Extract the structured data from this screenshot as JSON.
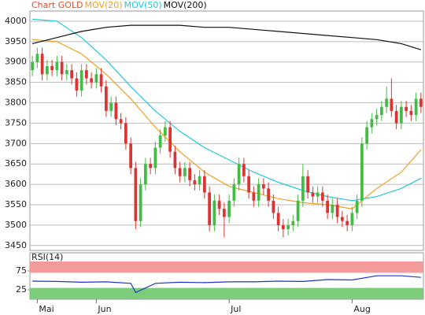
{
  "chart_data": [
    {
      "type": "candlestick",
      "title": "Chart GOLD",
      "title_color": "#e0502a",
      "up_color": "#44bb44",
      "down_color": "#dd3333",
      "open": [
        3880,
        3900,
        3920,
        3870,
        3890,
        3880,
        3900,
        3870,
        3880,
        3860,
        3830,
        3880,
        3860,
        3850,
        3870,
        3840,
        3780,
        3800,
        3760,
        3750,
        3700,
        3640,
        3510,
        3600,
        3650,
        3640,
        3690,
        3720,
        3740,
        3680,
        3640,
        3620,
        3640,
        3610,
        3600,
        3620,
        3580,
        3500,
        3560,
        3540,
        3520,
        3560,
        3600,
        3650,
        3620,
        3580,
        3560,
        3600,
        3590,
        3560,
        3530,
        3500,
        3490,
        3500,
        3510,
        3560,
        3620,
        3580,
        3570,
        3580,
        3560,
        3530,
        3550,
        3520,
        3510,
        3500,
        3530,
        3560,
        3700,
        3740,
        3760,
        3770,
        3790,
        3810,
        3780,
        3750,
        3790,
        3780,
        3770,
        3810
      ],
      "high": [
        3915,
        3935,
        3935,
        3905,
        3905,
        3915,
        3915,
        3895,
        3895,
        3875,
        3895,
        3895,
        3875,
        3885,
        3885,
        3855,
        3815,
        3815,
        3775,
        3765,
        3715,
        3655,
        3615,
        3665,
        3665,
        3705,
        3735,
        3755,
        3755,
        3695,
        3655,
        3655,
        3655,
        3625,
        3635,
        3635,
        3595,
        3575,
        3575,
        3555,
        3575,
        3615,
        3665,
        3665,
        3635,
        3595,
        3615,
        3615,
        3605,
        3575,
        3545,
        3515,
        3515,
        3525,
        3575,
        3650,
        3635,
        3595,
        3595,
        3595,
        3575,
        3565,
        3565,
        3535,
        3525,
        3545,
        3575,
        3715,
        3755,
        3775,
        3785,
        3805,
        3840,
        3860,
        3795,
        3805,
        3805,
        3795,
        3825,
        3825
      ],
      "low": [
        3865,
        3885,
        3855,
        3855,
        3865,
        3865,
        3855,
        3855,
        3845,
        3815,
        3815,
        3845,
        3835,
        3835,
        3825,
        3765,
        3765,
        3745,
        3735,
        3685,
        3625,
        3490,
        3495,
        3585,
        3625,
        3625,
        3675,
        3705,
        3665,
        3625,
        3605,
        3605,
        3595,
        3585,
        3585,
        3565,
        3485,
        3485,
        3525,
        3470,
        3505,
        3545,
        3585,
        3605,
        3565,
        3545,
        3545,
        3575,
        3545,
        3515,
        3485,
        3470,
        3475,
        3485,
        3495,
        3545,
        3565,
        3555,
        3555,
        3545,
        3515,
        3515,
        3505,
        3495,
        3485,
        3485,
        3515,
        3545,
        3685,
        3725,
        3745,
        3755,
        3775,
        3765,
        3735,
        3735,
        3765,
        3755,
        3755,
        3775
      ],
      "close": [
        3900,
        3920,
        3870,
        3890,
        3880,
        3900,
        3870,
        3880,
        3860,
        3830,
        3880,
        3860,
        3850,
        3870,
        3840,
        3780,
        3800,
        3760,
        3750,
        3700,
        3640,
        3510,
        3600,
        3650,
        3640,
        3690,
        3720,
        3740,
        3680,
        3640,
        3620,
        3640,
        3610,
        3600,
        3620,
        3580,
        3500,
        3560,
        3540,
        3520,
        3560,
        3600,
        3650,
        3620,
        3580,
        3560,
        3600,
        3590,
        3560,
        3530,
        3500,
        3490,
        3500,
        3510,
        3560,
        3620,
        3580,
        3570,
        3580,
        3560,
        3530,
        3550,
        3520,
        3510,
        3500,
        3530,
        3560,
        3700,
        3740,
        3760,
        3770,
        3790,
        3810,
        3780,
        3750,
        3790,
        3780,
        3770,
        3810,
        3790
      ],
      "series": [
        {
          "name": "MOV(20)",
          "color": "#f0a020",
          "x": [
            0,
            5,
            10,
            15,
            20,
            25,
            30,
            35,
            40,
            45,
            50,
            55,
            60,
            65,
            70,
            75,
            79
          ],
          "values": [
            3955,
            3950,
            3920,
            3870,
            3810,
            3740,
            3680,
            3630,
            3595,
            3580,
            3565,
            3555,
            3550,
            3540,
            3590,
            3630,
            3685
          ]
        },
        {
          "name": "MOV(50)",
          "color": "#22c8e0",
          "x": [
            0,
            5,
            10,
            15,
            20,
            25,
            30,
            35,
            40,
            45,
            50,
            55,
            60,
            65,
            70,
            75,
            79
          ],
          "values": [
            4005,
            4000,
            3960,
            3905,
            3840,
            3780,
            3730,
            3690,
            3660,
            3630,
            3605,
            3585,
            3570,
            3560,
            3570,
            3590,
            3615
          ]
        },
        {
          "name": "MOV(200)",
          "color": "#111111",
          "x": [
            0,
            5,
            10,
            15,
            20,
            25,
            30,
            35,
            40,
            45,
            50,
            55,
            60,
            65,
            70,
            75,
            79
          ],
          "values": [
            3945,
            3960,
            3975,
            3985,
            3990,
            3990,
            3990,
            3985,
            3985,
            3980,
            3975,
            3970,
            3965,
            3960,
            3955,
            3945,
            3930
          ]
        }
      ],
      "xlim": [
        -0.5,
        79.5
      ],
      "ylim": [
        3438,
        4025
      ],
      "yticks": [
        3450,
        3500,
        3550,
        3600,
        3650,
        3700,
        3750,
        3800,
        3850,
        3900,
        3950,
        4000
      ],
      "grid": true
    },
    {
      "type": "line",
      "title": "RSI(14)",
      "series": [
        {
          "color": "#2233cc",
          "x": [
            0,
            5,
            10,
            15,
            20,
            21,
            25,
            30,
            35,
            40,
            45,
            50,
            55,
            60,
            65,
            70,
            75,
            79
          ],
          "values": [
            48,
            47,
            45,
            46,
            42,
            18,
            42,
            45,
            44,
            46,
            46,
            48,
            47,
            52,
            51,
            62,
            62,
            58
          ]
        }
      ],
      "bands": [
        {
          "from": 70,
          "to": 100,
          "color": "#f39a9a"
        },
        {
          "from": 0,
          "to": 30,
          "color": "#7ccc7c"
        }
      ],
      "xlim": [
        -0.5,
        79.5
      ],
      "ylim": [
        0,
        100
      ],
      "yticks": [
        25,
        75
      ],
      "xticks": [
        {
          "value": 1,
          "label": "Mai"
        },
        {
          "value": 13,
          "label": "Jun"
        },
        {
          "value": 40,
          "label": "Jul"
        },
        {
          "value": 65,
          "label": "Aug"
        }
      ]
    }
  ]
}
